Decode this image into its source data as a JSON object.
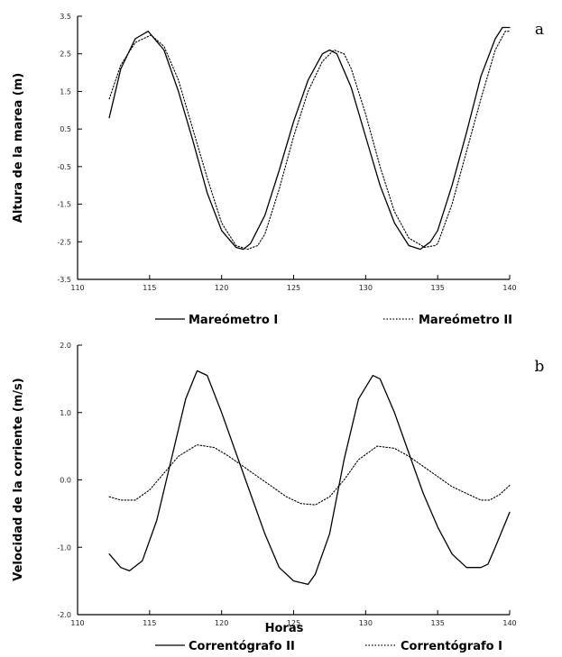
{
  "chart_data": [
    {
      "type": "line",
      "panel_label": "a",
      "ylabel": "Altura de la marea (m)",
      "xlabel": "",
      "xlim": [
        110,
        140
      ],
      "ylim": [
        -3.5,
        3.5
      ],
      "x_ticks": [
        "110",
        "115",
        "120",
        "125",
        "130",
        "135",
        "140"
      ],
      "y_ticks": [
        "3.5",
        "2.5",
        "1.5",
        "0.5",
        "-0.5",
        "-1.5",
        "-2.5",
        "-3.5"
      ],
      "legend_position": "bottom",
      "series": [
        {
          "name": "Mareómetro I",
          "style": "solid",
          "color": "#000000",
          "x": [
            112.2,
            113,
            114,
            114.9,
            116,
            117,
            118,
            119,
            120,
            121,
            121.5,
            122,
            123,
            124,
            125,
            126,
            127,
            127.5,
            128,
            129,
            130,
            131,
            132,
            133,
            133.8,
            134.5,
            135,
            136,
            137,
            138,
            139,
            139.5,
            140
          ],
          "y": [
            0.8,
            2.1,
            2.9,
            3.1,
            2.6,
            1.5,
            0.2,
            -1.2,
            -2.2,
            -2.65,
            -2.7,
            -2.55,
            -1.8,
            -0.6,
            0.7,
            1.8,
            2.5,
            2.6,
            2.5,
            1.6,
            0.3,
            -1.0,
            -2.0,
            -2.6,
            -2.7,
            -2.5,
            -2.2,
            -1.0,
            0.4,
            1.9,
            2.9,
            3.2,
            3.2
          ]
        },
        {
          "name": "Mareómetro II",
          "style": "dotted",
          "color": "#000000",
          "x": [
            112.2,
            113,
            114,
            115.1,
            116,
            117,
            118,
            119,
            120,
            121,
            121.8,
            122.5,
            123,
            124,
            125,
            126,
            127,
            127.8,
            128.5,
            129,
            130,
            131,
            132,
            133,
            134.1,
            134.8,
            135,
            136,
            137,
            138,
            139,
            139.7,
            140
          ],
          "y": [
            1.3,
            2.2,
            2.8,
            3.0,
            2.7,
            1.8,
            0.5,
            -0.8,
            -2.0,
            -2.6,
            -2.7,
            -2.6,
            -2.3,
            -1.1,
            0.3,
            1.5,
            2.3,
            2.6,
            2.5,
            2.1,
            0.9,
            -0.5,
            -1.7,
            -2.4,
            -2.65,
            -2.6,
            -2.55,
            -1.5,
            -0.1,
            1.3,
            2.6,
            3.1,
            3.1
          ]
        }
      ]
    },
    {
      "type": "line",
      "panel_label": "b",
      "ylabel": "Velocidad de la corriente (m/s)",
      "xlabel": "Horas",
      "xlim": [
        110,
        140
      ],
      "ylim": [
        -2.0,
        2.0
      ],
      "x_ticks": [
        "110",
        "115",
        "120",
        "125",
        "130",
        "135",
        "140"
      ],
      "y_ticks": [
        "2.0",
        "1.0",
        "0.0",
        "-1.0",
        "-2.0"
      ],
      "legend_position": "bottom",
      "series": [
        {
          "name": "Correntógrafo II",
          "style": "solid",
          "color": "#000000",
          "x": [
            112.2,
            113,
            113.6,
            114.5,
            115.5,
            116.5,
            117.5,
            118.3,
            119,
            120,
            121,
            122,
            123,
            124,
            125,
            126,
            126.5,
            127.5,
            128.5,
            129.5,
            130.5,
            131,
            132,
            133,
            134,
            135,
            136,
            137,
            138,
            138.5,
            139,
            140
          ],
          "y": [
            -1.1,
            -1.3,
            -1.35,
            -1.2,
            -0.6,
            0.3,
            1.2,
            1.62,
            1.55,
            1.0,
            0.4,
            -0.2,
            -0.8,
            -1.3,
            -1.5,
            -1.55,
            -1.4,
            -0.8,
            0.3,
            1.2,
            1.55,
            1.5,
            1.0,
            0.4,
            -0.2,
            -0.7,
            -1.1,
            -1.3,
            -1.3,
            -1.25,
            -1.0,
            -0.48
          ]
        },
        {
          "name": "Correntógrafo I",
          "style": "dotted",
          "color": "#000000",
          "x": [
            112.2,
            113,
            114,
            115,
            116,
            117,
            118.3,
            119.5,
            120.5,
            121.5,
            122.5,
            123.5,
            124.5,
            125.5,
            126.5,
            127.5,
            128.5,
            129.5,
            130.8,
            132,
            133,
            134,
            135,
            136,
            137,
            138,
            138.6,
            139.3,
            140
          ],
          "y": [
            -0.25,
            -0.3,
            -0.3,
            -0.15,
            0.1,
            0.35,
            0.52,
            0.48,
            0.35,
            0.2,
            0.05,
            -0.1,
            -0.25,
            -0.35,
            -0.37,
            -0.25,
            0.0,
            0.3,
            0.5,
            0.47,
            0.35,
            0.2,
            0.05,
            -0.1,
            -0.2,
            -0.3,
            -0.3,
            -0.22,
            -0.08
          ]
        }
      ]
    }
  ]
}
